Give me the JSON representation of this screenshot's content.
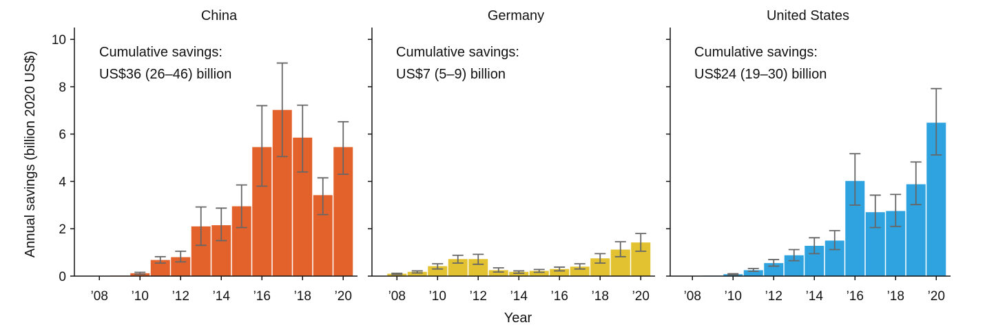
{
  "chart_data": [
    {
      "type": "bar",
      "title": "China",
      "color": "#e3622b",
      "annotation": [
        "Cumulative savings:",
        "US$36 (26–46) billion"
      ],
      "x": [
        2008,
        2009,
        2010,
        2011,
        2012,
        2013,
        2014,
        2015,
        2016,
        2017,
        2018,
        2019,
        2020
      ],
      "values": [
        0,
        0.02,
        0.12,
        0.68,
        0.8,
        2.1,
        2.15,
        2.95,
        5.45,
        7.02,
        5.85,
        3.42,
        5.45
      ],
      "error_low": [
        0,
        0.01,
        0.08,
        0.55,
        0.6,
        1.3,
        1.5,
        2.05,
        3.8,
        5.05,
        4.4,
        2.6,
        4.3
      ],
      "error_high": [
        0,
        0.03,
        0.16,
        0.82,
        1.05,
        2.92,
        2.87,
        3.85,
        7.2,
        9.0,
        7.22,
        4.15,
        6.52
      ],
      "ylim": [
        0,
        10.5
      ],
      "yticks": [
        0,
        2,
        4,
        6,
        8,
        10
      ],
      "xticks": [
        "’08",
        "’10",
        "’12",
        "’14",
        "’16",
        "’18",
        "’20"
      ],
      "grid": false
    },
    {
      "type": "bar",
      "title": "Germany",
      "color": "#e2c230",
      "annotation": [
        "Cumulative savings:",
        "US$7 (5–9) billion"
      ],
      "x": [
        2008,
        2009,
        2010,
        2011,
        2012,
        2013,
        2014,
        2015,
        2016,
        2017,
        2018,
        2019,
        2020
      ],
      "values": [
        0.1,
        0.18,
        0.42,
        0.72,
        0.72,
        0.25,
        0.18,
        0.22,
        0.3,
        0.4,
        0.75,
        1.12,
        1.42
      ],
      "error_low": [
        0.07,
        0.13,
        0.3,
        0.55,
        0.5,
        0.17,
        0.12,
        0.16,
        0.22,
        0.3,
        0.55,
        0.82,
        1.05
      ],
      "error_high": [
        0.12,
        0.22,
        0.52,
        0.88,
        0.92,
        0.35,
        0.22,
        0.28,
        0.38,
        0.52,
        0.95,
        1.45,
        1.8
      ],
      "ylim": [
        0,
        10.5
      ],
      "yticks": [
        0,
        2,
        4,
        6,
        8,
        10
      ],
      "xticks": [
        "’08",
        "’10",
        "’12",
        "’14",
        "’16",
        "’18",
        "’20"
      ],
      "grid": false
    },
    {
      "type": "bar",
      "title": "United States",
      "color": "#2fa3e0",
      "annotation": [
        "Cumulative savings:",
        "US$24 (19–30) billion"
      ],
      "x": [
        2008,
        2009,
        2010,
        2011,
        2012,
        2013,
        2014,
        2015,
        2016,
        2017,
        2018,
        2019,
        2020
      ],
      "values": [
        0,
        0.02,
        0.08,
        0.25,
        0.55,
        0.88,
        1.28,
        1.5,
        4.02,
        2.7,
        2.75,
        3.88,
        6.48
      ],
      "error_low": [
        0,
        0.01,
        0.06,
        0.2,
        0.42,
        0.65,
        0.95,
        1.12,
        3.0,
        2.05,
        2.1,
        3.02,
        5.12
      ],
      "error_high": [
        0,
        0.03,
        0.1,
        0.32,
        0.7,
        1.12,
        1.62,
        1.92,
        5.17,
        3.42,
        3.45,
        4.82,
        7.92
      ],
      "ylim": [
        0,
        10.5
      ],
      "yticks": [
        0,
        2,
        4,
        6,
        8,
        10
      ],
      "xticks": [
        "’08",
        "’10",
        "’12",
        "’14",
        "’16",
        "’18",
        "’20"
      ],
      "grid": false
    }
  ],
  "axes": {
    "ylabel": "Annual savings (billion 2020 US$)",
    "xlabel": "Year"
  },
  "colors": {
    "axis": "#111111",
    "errorbar": "#666666"
  }
}
